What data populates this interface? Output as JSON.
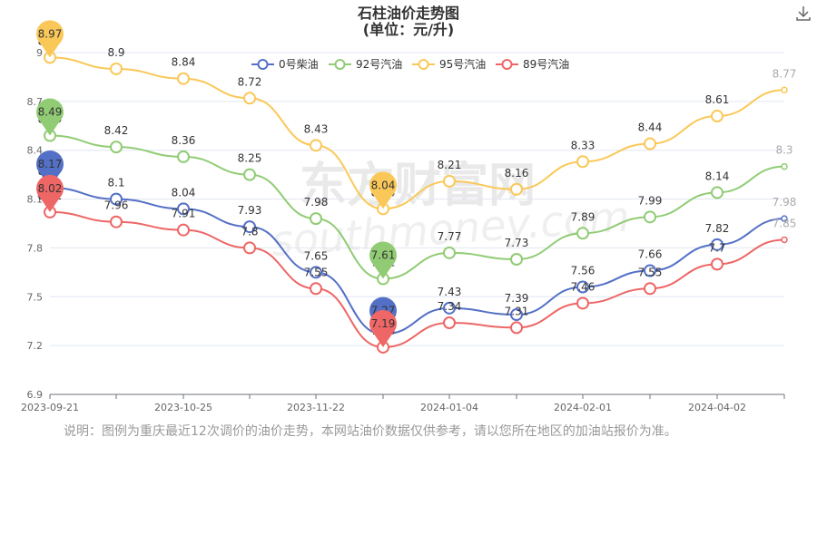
{
  "toolbar": {
    "download_icon": "download-icon"
  },
  "note": "说明：图例为重庆最近12次调价的油价走势，本网站油价数据仅供参考，请以您所在地区的加油站报价为准。",
  "watermark": {
    "text": "东方财富网",
    "sub": "southmoney.com"
  },
  "chart_data": {
    "type": "line",
    "title": "石柱油价走势图",
    "subtitle": "(单位：元/升)",
    "x_ticks": [
      "2023-09-21",
      "2023-10-25",
      "2023-11-22",
      "2024-01-04",
      "2024-02-01",
      "2024-04-02"
    ],
    "ylim": [
      6.9,
      9.0
    ],
    "y_ticks": [
      6.9,
      7.2,
      7.5,
      7.8,
      8.1,
      8.4,
      8.7,
      9
    ],
    "legend_position": "top-center",
    "grid": "horizontal",
    "series": [
      {
        "name": "0号柴油",
        "color": "#5470c6",
        "values": [
          8.17,
          8.1,
          8.04,
          7.93,
          7.65,
          7.27,
          7.43,
          7.39,
          7.56,
          7.66,
          7.82,
          7.98
        ],
        "max_pin": "8.17",
        "min_pin": "7.27"
      },
      {
        "name": "92号汽油",
        "color": "#91cc75",
        "values": [
          8.49,
          8.42,
          8.36,
          8.25,
          7.98,
          7.61,
          7.77,
          7.73,
          7.89,
          7.99,
          8.14,
          8.3
        ],
        "max_pin": "8.49",
        "min_pin": "7.61"
      },
      {
        "name": "95号汽油",
        "color": "#fac858",
        "values": [
          8.97,
          8.9,
          8.84,
          8.72,
          8.43,
          8.04,
          8.21,
          8.16,
          8.33,
          8.44,
          8.61,
          8.77
        ],
        "max_pin": "8.97",
        "min_pin": "8.04"
      },
      {
        "name": "89号汽油",
        "color": "#ee6666",
        "values": [
          8.02,
          7.96,
          7.91,
          7.8,
          7.55,
          7.19,
          7.34,
          7.31,
          7.46,
          7.55,
          7.7,
          7.85
        ],
        "max_pin": "8.02",
        "min_pin": "7.19"
      }
    ]
  }
}
